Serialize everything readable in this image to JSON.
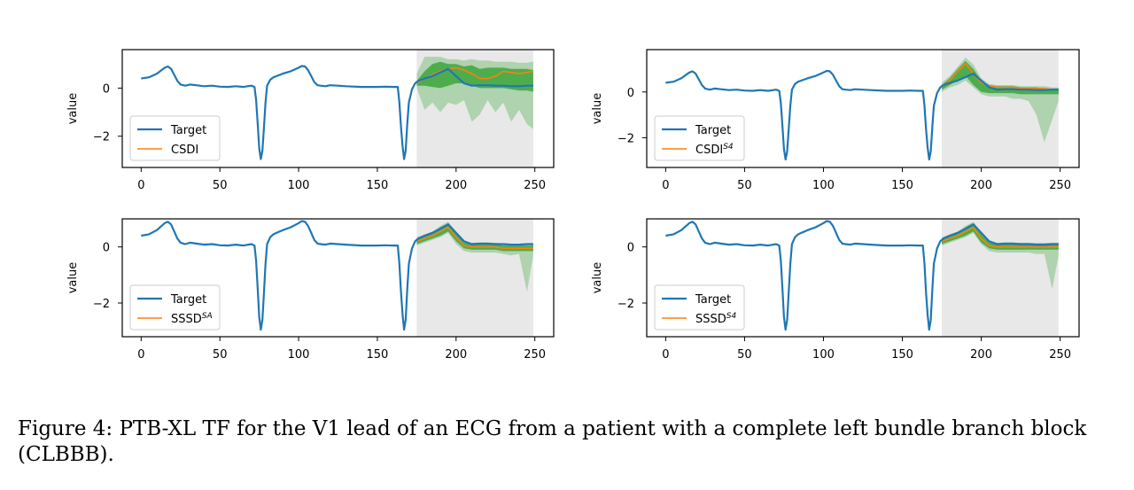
{
  "caption": "Figure 4: PTB-XL TF for the V1 lead of an ECG from a patient with a complete left bundle branch block (CLBBB).",
  "colors": {
    "target": "#1f77b4",
    "forecast": "#ff7f0e",
    "interval_dark": "#2ca02c",
    "interval_light": "#2ca02c",
    "forecast_region": "#e8e8e8"
  },
  "chart_data": [
    {
      "type": "line",
      "ylabel": "value",
      "xlim": [
        -12,
        262
      ],
      "ylim": [
        -3.3,
        1.6
      ],
      "xticks": [
        0,
        50,
        100,
        150,
        200,
        250
      ],
      "yticks": [
        0,
        -2
      ],
      "forecast_start": 175,
      "forecast_end": 249,
      "legend": "lower-left",
      "series": [
        {
          "name": "Target"
        },
        {
          "name": "CSDI",
          "sup": ""
        }
      ],
      "forecast": {
        "x": [
          175,
          180,
          185,
          190,
          195,
          200,
          205,
          210,
          215,
          220,
          225,
          230,
          235,
          240,
          245,
          249
        ],
        "median": [
          0.2,
          0.4,
          0.55,
          0.7,
          0.8,
          0.85,
          0.75,
          0.6,
          0.4,
          0.4,
          0.5,
          0.7,
          0.65,
          0.6,
          0.65,
          0.7
        ],
        "inner_upper": [
          0.3,
          0.7,
          1.0,
          1.1,
          1.0,
          1.0,
          0.9,
          0.95,
          0.8,
          0.85,
          0.85,
          0.85,
          0.8,
          0.8,
          0.8,
          0.75
        ],
        "inner_lower": [
          0.1,
          0.1,
          0.05,
          0.0,
          0.1,
          0.2,
          0.2,
          0.1,
          0.0,
          0.0,
          0.0,
          0.0,
          -0.05,
          -0.1,
          -0.1,
          -0.15
        ],
        "outer_upper": [
          0.6,
          1.3,
          1.3,
          1.3,
          1.2,
          1.2,
          1.15,
          1.2,
          1.15,
          1.15,
          1.1,
          1.1,
          1.1,
          1.05,
          1.05,
          1.1
        ],
        "outer_lower": [
          0.0,
          -0.9,
          -0.6,
          -1.0,
          -0.6,
          -0.7,
          -0.5,
          -1.4,
          -1.1,
          -0.5,
          -1.0,
          -0.6,
          -1.4,
          -0.9,
          -1.5,
          -1.7
        ]
      }
    },
    {
      "type": "line",
      "ylabel": "value",
      "xlim": [
        -12,
        262
      ],
      "ylim": [
        -3.3,
        1.85
      ],
      "xticks": [
        0,
        50,
        100,
        150,
        200,
        250
      ],
      "yticks": [
        0,
        -2
      ],
      "forecast_start": 175,
      "forecast_end": 249,
      "legend": "lower-left",
      "series": [
        {
          "name": "Target"
        },
        {
          "name": "CSDI",
          "sup": "S4"
        }
      ],
      "forecast": {
        "x": [
          175,
          180,
          185,
          190,
          195,
          200,
          205,
          210,
          215,
          220,
          225,
          230,
          235,
          240,
          245,
          249
        ],
        "median": [
          0.2,
          0.5,
          0.9,
          1.25,
          0.8,
          0.4,
          0.25,
          0.2,
          0.2,
          0.2,
          0.15,
          0.15,
          0.15,
          0.15,
          0.1,
          0.1
        ],
        "inner_upper": [
          0.3,
          0.6,
          1.0,
          1.35,
          1.0,
          0.5,
          0.3,
          0.25,
          0.25,
          0.25,
          0.2,
          0.2,
          0.2,
          0.15,
          0.15,
          0.15
        ],
        "inner_lower": [
          0.1,
          0.3,
          0.5,
          0.7,
          0.3,
          0.0,
          -0.05,
          -0.05,
          -0.05,
          -0.05,
          -0.1,
          -0.1,
          -0.1,
          -0.1,
          -0.1,
          -0.1
        ],
        "outer_upper": [
          0.4,
          0.7,
          1.1,
          1.5,
          1.2,
          0.6,
          0.35,
          0.3,
          0.3,
          0.3,
          0.25,
          0.25,
          0.25,
          0.25,
          0.2,
          0.2
        ],
        "outer_lower": [
          0.0,
          0.2,
          0.3,
          0.5,
          0.2,
          -0.1,
          -0.2,
          -0.2,
          -0.2,
          -0.3,
          -0.3,
          -0.4,
          -1.0,
          -2.2,
          -1.2,
          -0.4
        ]
      }
    },
    {
      "type": "line",
      "ylabel": "value",
      "xlim": [
        -12,
        262
      ],
      "ylim": [
        -3.2,
        1.0
      ],
      "xticks": [
        0,
        50,
        100,
        150,
        200,
        250
      ],
      "yticks": [
        0,
        -2
      ],
      "forecast_start": 175,
      "forecast_end": 249,
      "legend": "lower-left",
      "series": [
        {
          "name": "Target"
        },
        {
          "name": "SSSD",
          "sup": "SA"
        }
      ],
      "forecast": {
        "x": [
          175,
          180,
          185,
          190,
          195,
          200,
          205,
          210,
          215,
          220,
          225,
          230,
          235,
          240,
          245,
          249
        ],
        "median": [
          0.2,
          0.3,
          0.4,
          0.55,
          0.7,
          0.35,
          0.05,
          0.0,
          0.0,
          0.0,
          0.0,
          -0.05,
          -0.05,
          -0.05,
          -0.05,
          -0.05
        ],
        "inner_upper": [
          0.3,
          0.4,
          0.5,
          0.7,
          0.85,
          0.5,
          0.15,
          0.1,
          0.1,
          0.1,
          0.1,
          0.05,
          0.05,
          0.05,
          0.05,
          0.05
        ],
        "inner_lower": [
          0.1,
          0.2,
          0.3,
          0.4,
          0.55,
          0.2,
          -0.05,
          -0.1,
          -0.1,
          -0.1,
          -0.1,
          -0.15,
          -0.15,
          -0.15,
          -0.15,
          -0.15
        ],
        "outer_upper": [
          0.35,
          0.45,
          0.55,
          0.75,
          0.9,
          0.55,
          0.2,
          0.15,
          0.15,
          0.15,
          0.15,
          0.1,
          0.1,
          0.1,
          0.1,
          0.1
        ],
        "outer_lower": [
          0.05,
          0.15,
          0.25,
          0.35,
          0.5,
          0.1,
          -0.15,
          -0.2,
          -0.2,
          -0.2,
          -0.2,
          -0.25,
          -0.3,
          -0.25,
          -1.6,
          -0.3
        ]
      }
    },
    {
      "type": "line",
      "ylabel": "value",
      "xlim": [
        -12,
        262
      ],
      "ylim": [
        -3.2,
        1.0
      ],
      "xticks": [
        0,
        50,
        100,
        150,
        200,
        250
      ],
      "yticks": [
        0,
        -2
      ],
      "forecast_start": 175,
      "forecast_end": 249,
      "legend": "lower-left",
      "series": [
        {
          "name": "Target"
        },
        {
          "name": "SSSD",
          "sup": "S4"
        }
      ],
      "forecast": {
        "x": [
          175,
          180,
          185,
          190,
          195,
          200,
          205,
          210,
          215,
          220,
          225,
          230,
          235,
          240,
          245,
          249
        ],
        "median": [
          0.2,
          0.3,
          0.4,
          0.55,
          0.7,
          0.3,
          0.05,
          0.0,
          0.0,
          0.0,
          0.0,
          0.0,
          0.0,
          0.0,
          0.0,
          0.0
        ],
        "inner_upper": [
          0.3,
          0.4,
          0.5,
          0.7,
          0.85,
          0.45,
          0.15,
          0.1,
          0.1,
          0.1,
          0.1,
          0.1,
          0.1,
          0.1,
          0.1,
          0.1
        ],
        "inner_lower": [
          0.1,
          0.2,
          0.3,
          0.4,
          0.55,
          0.15,
          -0.05,
          -0.1,
          -0.1,
          -0.1,
          -0.1,
          -0.1,
          -0.1,
          -0.1,
          -0.1,
          -0.1
        ],
        "outer_upper": [
          0.35,
          0.45,
          0.55,
          0.75,
          0.9,
          0.5,
          0.2,
          0.15,
          0.15,
          0.15,
          0.15,
          0.15,
          0.15,
          0.15,
          0.15,
          0.15
        ],
        "outer_lower": [
          0.05,
          0.15,
          0.25,
          0.35,
          0.5,
          0.1,
          -0.15,
          -0.2,
          -0.2,
          -0.2,
          -0.2,
          -0.2,
          -0.25,
          -0.25,
          -1.5,
          -0.3
        ]
      }
    }
  ],
  "target_signal": {
    "x": [
      0,
      5,
      10,
      13,
      15,
      17,
      19,
      21,
      23,
      25,
      28,
      31,
      35,
      40,
      45,
      50,
      55,
      60,
      65,
      70,
      72,
      73,
      74,
      75,
      76,
      77,
      78,
      79,
      80,
      82,
      84,
      86,
      88,
      90,
      95,
      100,
      102,
      104,
      106,
      108,
      110,
      112,
      114,
      117,
      120,
      125,
      130,
      140,
      150,
      155,
      160,
      163,
      164,
      165,
      166,
      167,
      168,
      169,
      170,
      172,
      174,
      176,
      178,
      180,
      185,
      190,
      195,
      200,
      205,
      210,
      215,
      220,
      225,
      230,
      235,
      240,
      245,
      249
    ],
    "y": [
      0.4,
      0.45,
      0.6,
      0.75,
      0.85,
      0.9,
      0.8,
      0.55,
      0.3,
      0.15,
      0.1,
      0.15,
      0.12,
      0.08,
      0.1,
      0.06,
      0.05,
      0.08,
      0.05,
      0.1,
      0.05,
      -0.5,
      -1.5,
      -2.5,
      -2.95,
      -2.6,
      -1.6,
      -0.6,
      0.1,
      0.35,
      0.45,
      0.5,
      0.55,
      0.6,
      0.7,
      0.85,
      0.92,
      0.9,
      0.75,
      0.5,
      0.25,
      0.12,
      0.1,
      0.08,
      0.12,
      0.1,
      0.08,
      0.05,
      0.05,
      0.06,
      0.05,
      0.05,
      -0.6,
      -1.6,
      -2.4,
      -2.95,
      -2.6,
      -1.5,
      -0.6,
      -0.05,
      0.2,
      0.3,
      0.35,
      0.4,
      0.5,
      0.65,
      0.8,
      0.5,
      0.2,
      0.1,
      0.12,
      0.12,
      0.1,
      0.1,
      0.08,
      0.08,
      0.1,
      0.1
    ]
  }
}
